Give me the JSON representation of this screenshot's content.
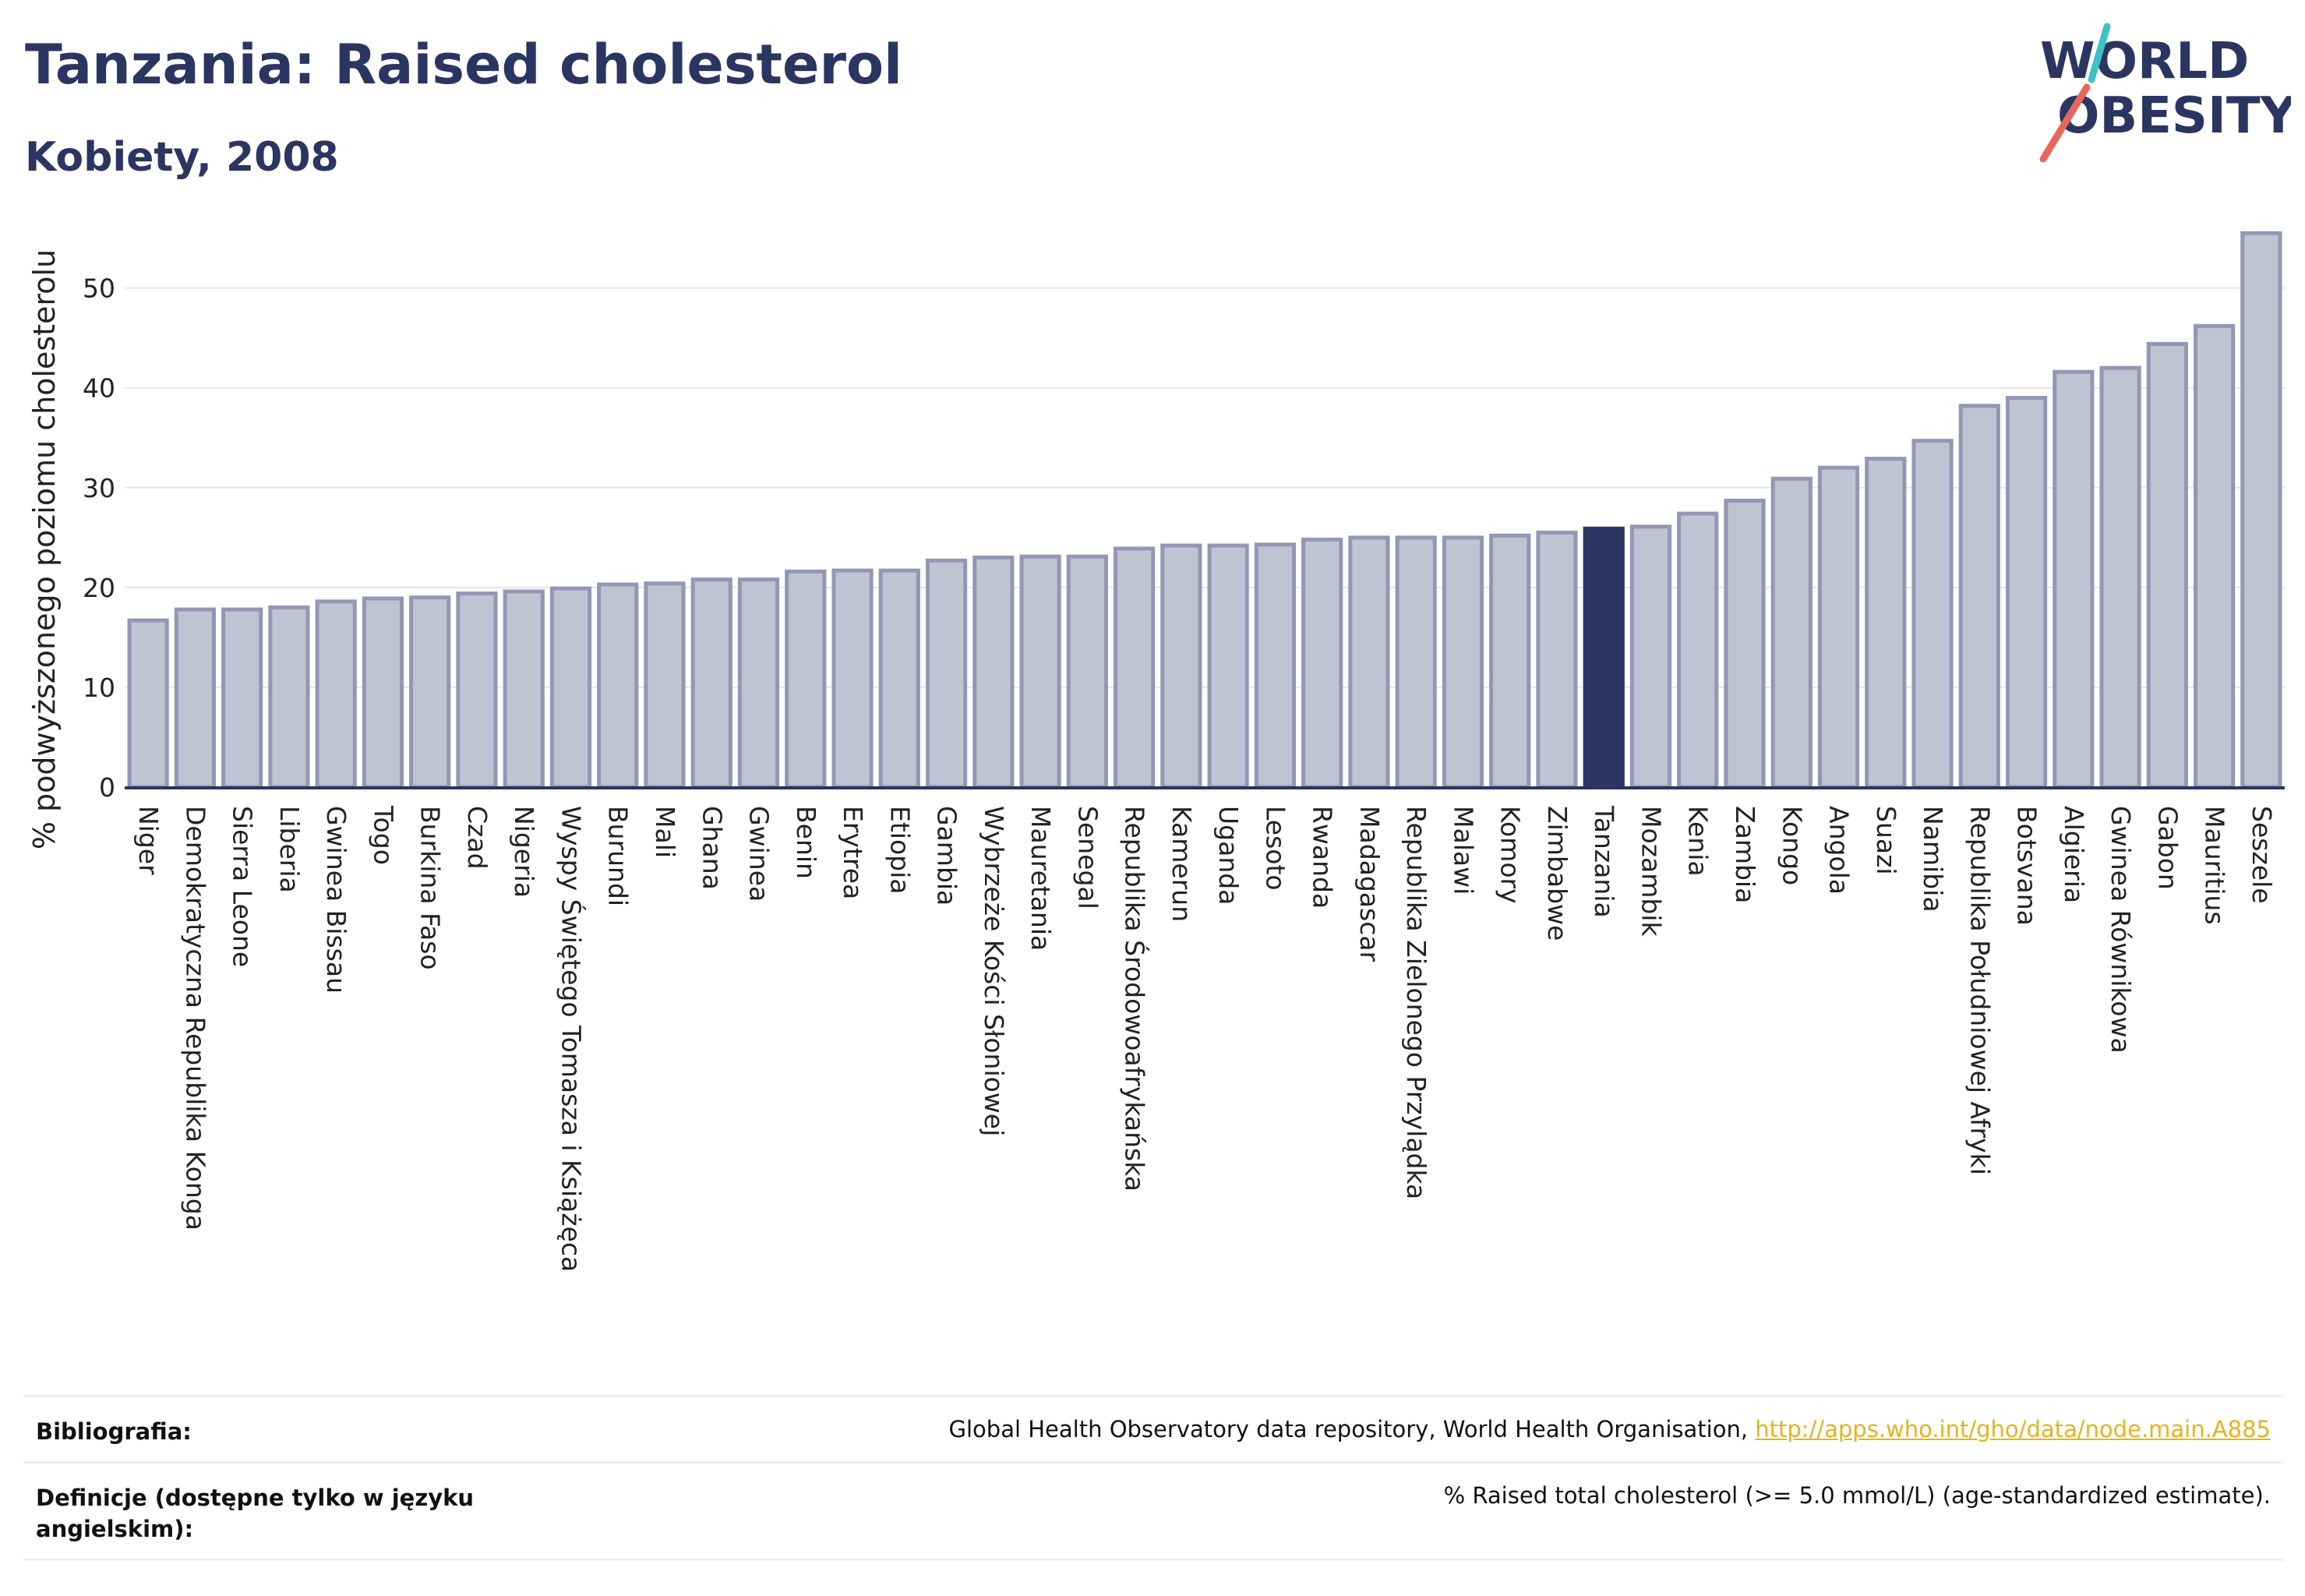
{
  "header": {
    "title": "Tanzania: Raised cholesterol",
    "subtitle": "Kobiety, 2008"
  },
  "logo": {
    "line1": "WORLD",
    "line2": "OBESITY",
    "colors": {
      "text": "#2b3561",
      "slash_red": "#e8655a",
      "slash_teal": "#3ec1c9"
    }
  },
  "colors": {
    "bar_fill": "#bfc3d2",
    "bar_stroke": "#9298b3",
    "highlight": "#2b3561",
    "grid": "#e6e6e6",
    "axis": "#2b3561"
  },
  "chart_data": {
    "type": "bar",
    "title": "Tanzania: Raised cholesterol",
    "subtitle": "Kobiety, 2008",
    "xlabel": "",
    "ylabel": "% podwyższonego poziomu cholesterolu",
    "ylim": [
      0,
      57
    ],
    "yticks": [
      0,
      10,
      20,
      30,
      40,
      50
    ],
    "grid": true,
    "highlight_category": "Tanzania",
    "categories": [
      "Niger",
      "Demokratyczna Republika Konga",
      "Sierra Leone",
      "Liberia",
      "Gwinea Bissau",
      "Togo",
      "Burkina Faso",
      "Czad",
      "Nigeria",
      "Wyspy Świętego Tomasza i Książęca",
      "Burundi",
      "Mali",
      "Ghana",
      "Gwinea",
      "Benin",
      "Erytrea",
      "Etiopia",
      "Gambia",
      "Wybrzeże Kości Słoniowej",
      "Mauretania",
      "Senegal",
      "Republika Środowoafrykańska",
      "Kamerun",
      "Uganda",
      "Lesoto",
      "Rwanda",
      "Madagascar",
      "Republika Zielonego Przylądka",
      "Malawi",
      "Komory",
      "Zimbabwe",
      "Tanzania",
      "Mozambik",
      "Kenia",
      "Zambia",
      "Kongo",
      "Angola",
      "Suazi",
      "Namibia",
      "Republika Południowej Afryki",
      "Botsvana",
      "Algieria",
      "Gwinea Równikowa",
      "Gabon",
      "Mauritius",
      "Seszele"
    ],
    "values": [
      16.7,
      17.8,
      17.8,
      18.0,
      18.6,
      18.9,
      19.0,
      19.4,
      19.6,
      19.9,
      20.3,
      20.4,
      20.8,
      20.8,
      21.6,
      21.7,
      21.7,
      22.7,
      23.0,
      23.1,
      23.1,
      23.9,
      24.2,
      24.2,
      24.3,
      24.8,
      25.0,
      25.0,
      25.0,
      25.2,
      25.5,
      25.9,
      26.1,
      27.4,
      28.7,
      30.9,
      32.0,
      32.9,
      34.7,
      38.2,
      39.0,
      41.6,
      42.0,
      44.4,
      46.2,
      55.5
    ]
  },
  "footer": {
    "bibliography_label": "Bibliografia:",
    "bibliography_text": "Global Health Observatory data repository, World Health Organisation, ",
    "bibliography_link": "http://apps.who.int/gho/data/node.main.A885",
    "definitions_label": "Definicje (dostępne tylko w języku angielskim):",
    "definitions_text": "% Raised total cholesterol (>= 5.0 mmol/L) (age-standardized estimate)."
  }
}
